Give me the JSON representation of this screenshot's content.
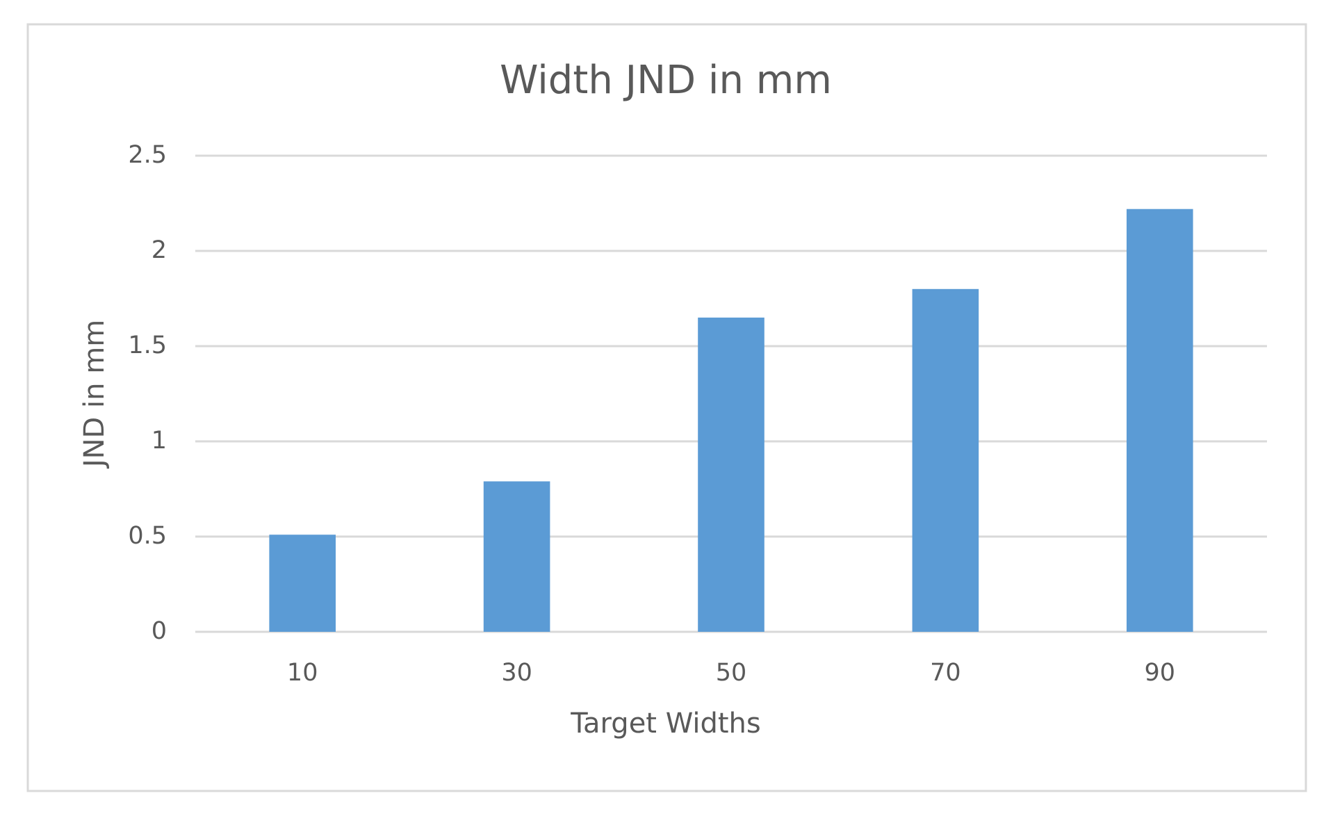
{
  "chart_data": {
    "type": "bar",
    "title": "Width JND in mm",
    "x_label": "Target Widths",
    "y_label": "JND in mm",
    "categories": [
      "10",
      "30",
      "50",
      "70",
      "90"
    ],
    "values": [
      0.51,
      0.79,
      1.65,
      1.8,
      2.22
    ],
    "color": "#5b9bd5",
    "ylim": [
      0,
      2.5
    ],
    "yticks": [
      0,
      0.5,
      1,
      1.5,
      2,
      2.5
    ],
    "grid": true
  }
}
